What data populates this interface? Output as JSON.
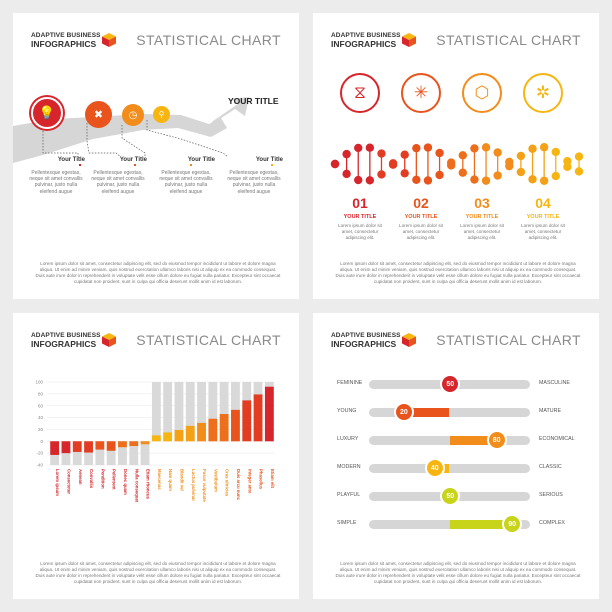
{
  "brand": {
    "line1": "ADAPTIVE BUSINESS",
    "line2": "INFOGRAPHICS"
  },
  "chart_title": "STATISTICAL CHART",
  "footer_text": "Lorem ipsum dolor sit amet, consectetur adipiscing elit, sed do eiusmod tempor incididunt ut labore et dolore magna aliqua. Ut enim ad minim veniam, quis nostrud exercitation ullamco laboris nisi ut aliquip ex ea commodo consequat. Duis aute irure dolor in reprehenderit in voluptate velit esse cillum dolore eu fugiat nulla pariatur. Excepteur sint occaecat cupidatat non proident, sunt in culpa qui officia deserunt mollit anim id est laborum.",
  "colors": {
    "red": "#d7262b",
    "orange_red": "#e9541c",
    "orange": "#f28c1a",
    "yellow": "#f7b512",
    "lime": "#c8d41a",
    "gray": "#d6d6d6"
  },
  "panel1": {
    "headline": "YOUR TITLE",
    "steps": [
      {
        "icon": "lightbulb-icon",
        "glyph": "💡",
        "title": "Your Title",
        "desc": "Pellentesque egestas, neque sit amet convallis pulvinar, justo nulla eleifend augue"
      },
      {
        "icon": "tools-icon",
        "glyph": "✖",
        "title": "Your Title",
        "desc": "Pellentesque egestas, neque sit amet convallis pulvinar, justo nulla eleifend augue"
      },
      {
        "icon": "clock-icon",
        "glyph": "◷",
        "title": "Your Title",
        "desc": "Pellentesque egestas, neque sit amet convallis pulvinar, justo nulla eleifend augue"
      },
      {
        "icon": "magnifier-icon",
        "glyph": "⚲",
        "title": "Your Title",
        "desc": "Pellentesque egestas, neque sit amet convallis pulvinar, justo nulla eleifend augue"
      }
    ]
  },
  "panel2": {
    "icons": [
      {
        "name": "dna-icon",
        "glyph": "⧖"
      },
      {
        "name": "molecule-icon",
        "glyph": "✳"
      },
      {
        "name": "hexagons-icon",
        "glyph": "⬡"
      },
      {
        "name": "network-icon",
        "glyph": "✲"
      }
    ],
    "steps": [
      {
        "num": "01",
        "title": "YOUR TITLE",
        "desc": "Lorem ipsum dolor sit amet, consectetur adipiscing elit."
      },
      {
        "num": "02",
        "title": "YOUR TITLE",
        "desc": "Lorem ipsum dolor sit amet, consectetur adipiscing elit."
      },
      {
        "num": "03",
        "title": "YOUR TITLE",
        "desc": "Lorem ipsum dolor sit amet, consectetur adipiscing elit."
      },
      {
        "num": "04",
        "title": "YOUR TITLE",
        "desc": "Lorem ipsum dolor sit amet, consectetur adipiscing elit."
      }
    ]
  },
  "chart_data": {
    "type": "bar",
    "title": "",
    "ylim": [
      -40,
      100
    ],
    "yticks": [
      "100",
      "80",
      "60",
      "40",
      "20",
      "0",
      "-20",
      "-40"
    ],
    "categories": [
      "Lorem ipsum",
      "Consectetur",
      "Aenean",
      "Convallis",
      "Pendition",
      "Pellentent",
      "Donec quam",
      "Nulla consequat",
      "Etiam rhoncus",
      "Maecenas",
      "Nam quam",
      "Blandit vel",
      "Luctus pulvinar",
      "Fusce vulputate",
      "Vestibulum",
      "Cras ultricies",
      "Duis arcu nunc",
      "Integer ante",
      "Phasellus",
      "Etiam elit"
    ],
    "values": [
      -23,
      -20,
      -18,
      -19,
      -14,
      -16,
      -10,
      -8,
      -5,
      10,
      15,
      19,
      26,
      31,
      38,
      46,
      53,
      69,
      79,
      92
    ]
  },
  "panel4": {
    "rows": [
      {
        "left": "FEMININE",
        "right": "MASCULINE",
        "value": 50,
        "label": "50",
        "color": "#d7262b"
      },
      {
        "left": "YOUNG",
        "right": "MATURE",
        "value": 20,
        "label": "20",
        "color": "#e9541c"
      },
      {
        "left": "LUXURY",
        "right": "ECONOMICAL",
        "value": 80,
        "label": "80",
        "color": "#f28c1a"
      },
      {
        "left": "MODERN",
        "right": "CLASSIC",
        "value": 40,
        "label": "40",
        "color": "#f7b512"
      },
      {
        "left": "PLAYFUL",
        "right": "SERIOUS",
        "value": 50,
        "label": "50",
        "color": "#c8d41a"
      },
      {
        "left": "SIMPLE",
        "right": "COMPLEX",
        "value": 90,
        "label": "90",
        "color": "#c8d41a"
      }
    ]
  }
}
